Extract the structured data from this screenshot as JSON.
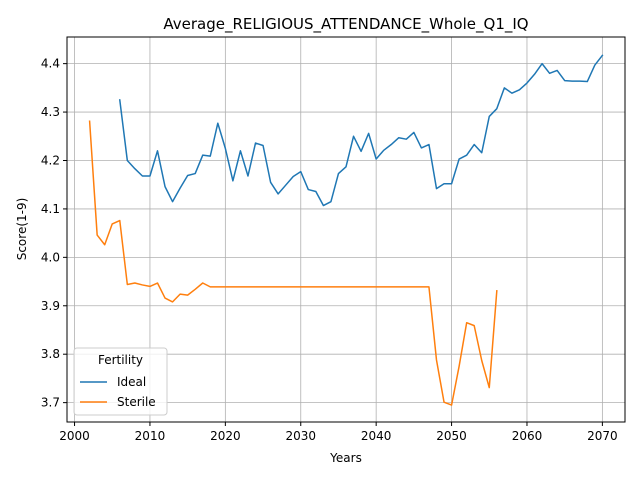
{
  "chart_data": {
    "type": "line",
    "title": "Average_RELIGIOUS_ATTENDANCE_Whole_Q1_IQ",
    "xlabel": "Years",
    "ylabel": "Score(1-9)",
    "xlim": [
      1999,
      2073
    ],
    "ylim": [
      3.66,
      4.455
    ],
    "x_ticks": [
      2000,
      2010,
      2020,
      2030,
      2040,
      2050,
      2060,
      2070
    ],
    "x_tick_labels": [
      "2000",
      "2010",
      "2020",
      "2030",
      "2040",
      "2050",
      "2060",
      "2070"
    ],
    "y_ticks": [
      3.7,
      3.8,
      3.9,
      4.0,
      4.1,
      4.2,
      4.3,
      4.4
    ],
    "y_tick_labels": [
      "3.7",
      "3.8",
      "3.9",
      "4.0",
      "4.1",
      "4.2",
      "4.3",
      "4.4"
    ],
    "grid": true,
    "legend": {
      "title": "Fertility",
      "placement": "lower-left"
    },
    "series": [
      {
        "name": "Ideal",
        "color": "#1f77b4",
        "x": [
          2006,
          2007,
          2008,
          2009,
          2010,
          2011,
          2012,
          2013,
          2014,
          2015,
          2016,
          2017,
          2018,
          2019,
          2020,
          2021,
          2022,
          2023,
          2024,
          2025,
          2026,
          2027,
          2028,
          2029,
          2030,
          2031,
          2032,
          2033,
          2034,
          2035,
          2036,
          2037,
          2038,
          2039,
          2040,
          2041,
          2042,
          2043,
          2044,
          2045,
          2046,
          2047,
          2048,
          2049,
          2050,
          2051,
          2052,
          2053,
          2054,
          2055,
          2056,
          2057,
          2058,
          2059,
          2060,
          2061,
          2062,
          2063,
          2064,
          2065,
          2066,
          2067,
          2068,
          2069,
          2070
        ],
        "y": [
          4.325,
          4.2,
          4.183,
          4.168,
          4.168,
          4.22,
          4.146,
          4.115,
          4.143,
          4.169,
          4.173,
          4.211,
          4.209,
          4.277,
          4.225,
          4.158,
          4.22,
          4.168,
          4.236,
          4.231,
          4.155,
          4.131,
          4.149,
          4.167,
          4.177,
          4.14,
          4.136,
          4.107,
          4.115,
          4.173,
          4.187,
          4.25,
          4.219,
          4.256,
          4.203,
          4.221,
          4.233,
          4.247,
          4.244,
          4.258,
          4.226,
          4.233,
          4.142,
          4.152,
          4.152,
          4.203,
          4.211,
          4.233,
          4.216,
          4.291,
          4.307,
          4.35,
          4.339,
          4.346,
          4.36,
          4.378,
          4.4,
          4.38,
          4.386,
          4.365,
          4.364,
          4.364,
          4.363,
          4.397,
          4.417
        ]
      },
      {
        "name": "Sterile",
        "color": "#ff7f0e",
        "x": [
          2002,
          2003,
          2004,
          2005,
          2006,
          2007,
          2008,
          2009,
          2010,
          2011,
          2012,
          2013,
          2014,
          2015,
          2016,
          2017,
          2018,
          2019,
          2020,
          2021,
          2022,
          2023,
          2024,
          2025,
          2026,
          2027,
          2028,
          2029,
          2030,
          2031,
          2032,
          2033,
          2034,
          2035,
          2036,
          2037,
          2038,
          2039,
          2040,
          2041,
          2042,
          2043,
          2044,
          2045,
          2046,
          2047,
          2048,
          2049,
          2050,
          2051,
          2052,
          2053,
          2054,
          2055,
          2056
        ],
        "y": [
          4.281,
          4.046,
          4.026,
          4.069,
          4.076,
          3.944,
          3.947,
          3.943,
          3.94,
          3.947,
          3.916,
          3.908,
          3.924,
          3.922,
          3.934,
          3.947,
          3.939,
          3.939,
          3.939,
          3.939,
          3.939,
          3.939,
          3.939,
          3.939,
          3.939,
          3.939,
          3.939,
          3.939,
          3.939,
          3.939,
          3.939,
          3.939,
          3.939,
          3.939,
          3.939,
          3.939,
          3.939,
          3.939,
          3.939,
          3.939,
          3.939,
          3.939,
          3.939,
          3.939,
          3.939,
          3.939,
          3.788,
          3.701,
          3.695,
          3.775,
          3.865,
          3.859,
          3.787,
          3.731,
          3.931
        ]
      }
    ]
  }
}
